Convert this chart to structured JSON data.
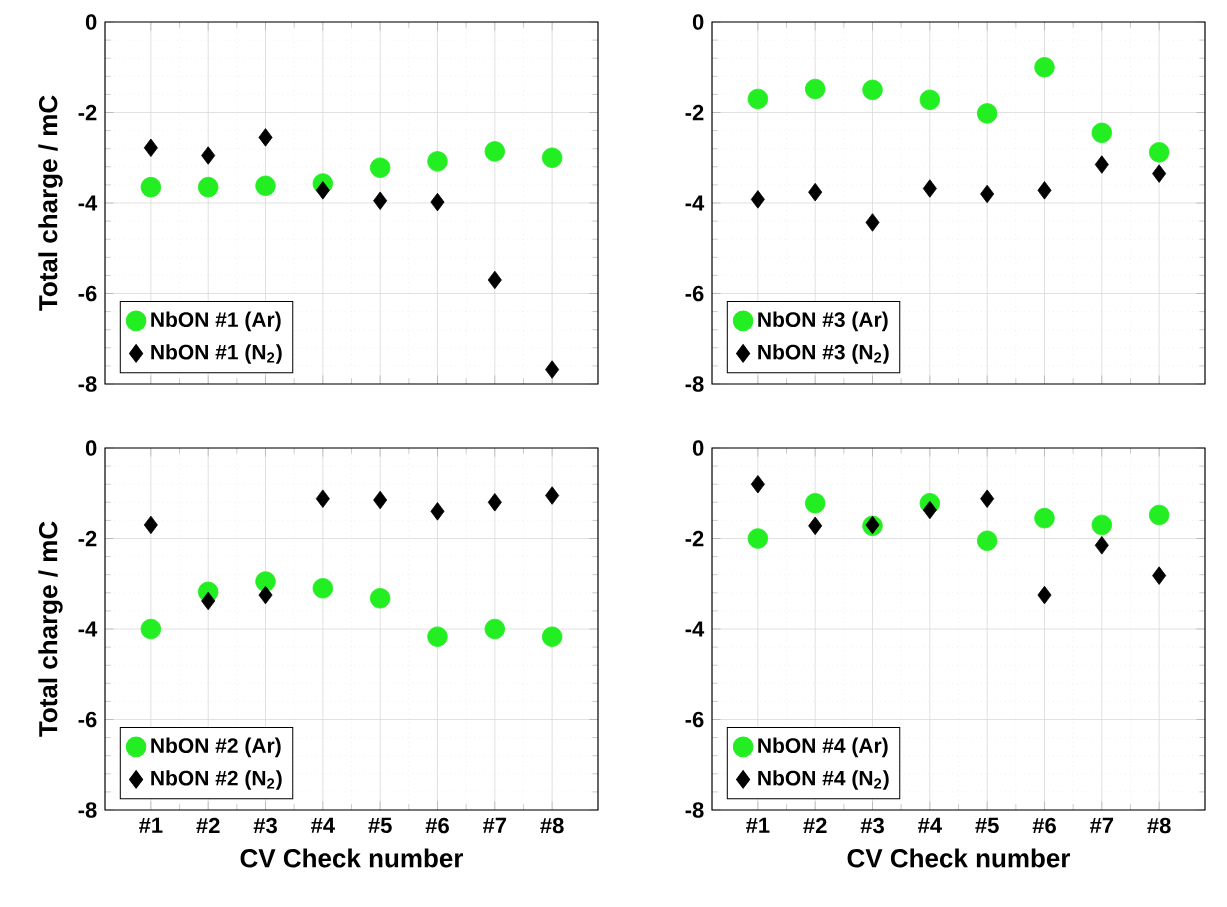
{
  "chart_data": [
    {
      "type": "scatter",
      "ylabel": "Total charge / mC",
      "categories": [
        null,
        null,
        null,
        null,
        null,
        null,
        null,
        null
      ],
      "ylim": [
        -8,
        0
      ],
      "yticks": [
        -8,
        -6,
        -4,
        -2,
        0
      ],
      "grid": true,
      "legend": "bottom left",
      "tick_labels": "y",
      "series": [
        {
          "name": "NbON #1 (Ar)",
          "color": "#22ee22",
          "marker": "circle",
          "values": [
            -3.65,
            -3.65,
            -3.62,
            -3.57,
            -3.22,
            -3.08,
            -2.86,
            -3.0
          ]
        },
        {
          "name": "NbON #1 (N$_{2}$)",
          "color": "#000000",
          "marker": "diamond",
          "values": [
            -2.78,
            -2.95,
            -2.55,
            -3.72,
            -3.95,
            -3.98,
            -5.7,
            -7.68
          ]
        }
      ]
    },
    {
      "type": "scatter",
      "categories": [
        null,
        null,
        null,
        null,
        null,
        null,
        null,
        null
      ],
      "ylim": [
        -8,
        0
      ],
      "yticks": [
        -8,
        -6,
        -4,
        -2,
        0
      ],
      "grid": true,
      "legend": "bottom left",
      "tick_labels": "y",
      "series": [
        {
          "name": "NbON #3 (Ar)",
          "color": "#22ee22",
          "marker": "circle",
          "values": [
            -1.7,
            -1.48,
            -1.5,
            -1.72,
            -2.02,
            -1.0,
            -2.45,
            -2.88
          ]
        },
        {
          "name": "NbON #3 (N$_{2}$)",
          "color": "#000000",
          "marker": "diamond",
          "values": [
            -3.92,
            -3.76,
            -4.43,
            -3.68,
            -3.8,
            -3.72,
            -3.15,
            -3.35
          ]
        }
      ]
    },
    {
      "type": "scatter",
      "ylabel": "Total charge / mC",
      "xlabel": "CV Check number",
      "categories": [
        "#1",
        "#2",
        "#3",
        "#4",
        "#5",
        "#6",
        "#7",
        "#8"
      ],
      "ylim": [
        -8,
        0
      ],
      "yticks": [
        -8,
        -6,
        -4,
        -2,
        0
      ],
      "grid": true,
      "legend": "bottom left",
      "series": [
        {
          "name": "NbON #2 (Ar)",
          "color": "#22ee22",
          "marker": "circle",
          "values": [
            -4.0,
            -3.18,
            -2.95,
            -3.1,
            -3.32,
            -4.17,
            -4.0,
            -4.17
          ]
        },
        {
          "name": "NbON #2 (N$_{2}$)",
          "color": "#000000",
          "marker": "diamond",
          "values": [
            -1.7,
            -3.38,
            -3.25,
            -1.12,
            -1.15,
            -1.4,
            -1.2,
            -1.05
          ]
        }
      ]
    },
    {
      "type": "scatter",
      "xlabel": "CV Check number",
      "categories": [
        "#1",
        "#2",
        "#3",
        "#4",
        "#5",
        "#6",
        "#7",
        "#8"
      ],
      "ylim": [
        -8,
        0
      ],
      "yticks": [
        -8,
        -6,
        -4,
        -2,
        0
      ],
      "grid": true,
      "legend": "bottom left",
      "series": [
        {
          "name": "NbON #4 (Ar)",
          "color": "#22ee22",
          "marker": "circle",
          "values": [
            -2.0,
            -1.22,
            -1.72,
            -1.22,
            -2.05,
            -1.55,
            -1.7,
            -1.48
          ]
        },
        {
          "name": "NbON #4 (N$_{2}$)",
          "color": "#000000",
          "marker": "diamond",
          "values": [
            -0.8,
            -1.72,
            -1.7,
            -1.37,
            -1.12,
            -3.25,
            -2.15,
            -2.82
          ]
        }
      ]
    }
  ]
}
